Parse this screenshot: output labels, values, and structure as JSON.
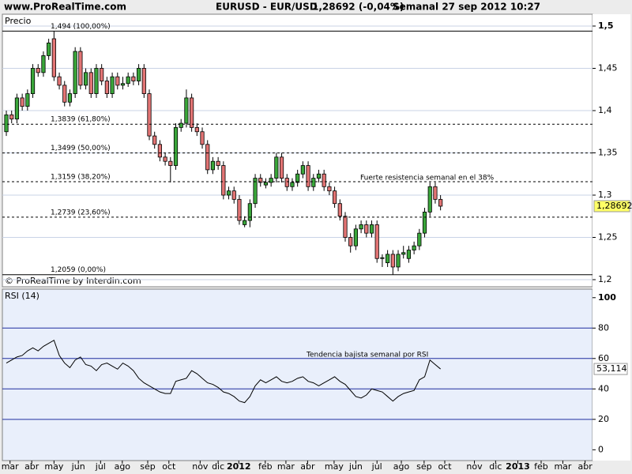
{
  "header": {
    "site": "www.ProRealTime.com",
    "symbol": "EURUSD - EUR/USD",
    "quote": "1,28692 (-0,04%)",
    "period": "Semanal  27 sep 2012 10:27"
  },
  "chart_data": [
    {
      "type": "candlestick",
      "title": "Precio",
      "credit": "© ProRealTime by Interdin.com",
      "up_color": "#3aa63a",
      "down_color": "#e27474",
      "grid": true,
      "open": [
        1.375,
        1.395,
        1.39,
        1.415,
        1.405,
        1.42,
        1.45,
        1.445,
        1.465,
        1.485,
        1.44,
        1.43,
        1.41,
        1.42,
        1.47,
        1.43,
        1.445,
        1.42,
        1.45,
        1.435,
        1.42,
        1.44,
        1.43,
        1.432,
        1.44,
        1.435,
        1.45,
        1.42,
        1.37,
        1.36,
        1.345,
        1.34,
        1.335,
        1.38,
        1.385,
        1.415,
        1.38,
        1.375,
        1.36,
        1.33,
        1.34,
        1.335,
        1.3,
        1.305,
        1.295,
        1.265,
        1.27,
        1.29,
        1.32,
        1.312,
        1.315,
        1.32,
        1.345,
        1.32,
        1.31,
        1.315,
        1.325,
        1.335,
        1.31,
        1.32,
        1.325,
        1.31,
        1.305,
        1.29,
        1.275,
        1.25,
        1.24,
        1.26,
        1.265,
        1.255,
        1.265,
        1.225,
        1.22,
        1.23,
        1.215,
        1.23,
        1.225,
        1.235,
        1.24,
        1.255,
        1.28,
        1.31,
        1.295
      ],
      "high": [
        1.4,
        1.4,
        1.42,
        1.42,
        1.425,
        1.455,
        1.455,
        1.47,
        1.485,
        1.494,
        1.445,
        1.435,
        1.425,
        1.475,
        1.475,
        1.45,
        1.45,
        1.455,
        1.455,
        1.44,
        1.445,
        1.445,
        1.44,
        1.445,
        1.445,
        1.455,
        1.455,
        1.425,
        1.375,
        1.365,
        1.35,
        1.345,
        1.385,
        1.39,
        1.425,
        1.42,
        1.385,
        1.38,
        1.365,
        1.345,
        1.345,
        1.34,
        1.31,
        1.31,
        1.3,
        1.275,
        1.295,
        1.325,
        1.325,
        1.32,
        1.325,
        1.35,
        1.35,
        1.325,
        1.32,
        1.33,
        1.34,
        1.34,
        1.325,
        1.33,
        1.33,
        1.315,
        1.31,
        1.295,
        1.28,
        1.255,
        1.265,
        1.27,
        1.27,
        1.27,
        1.27,
        1.23,
        1.235,
        1.235,
        1.235,
        1.24,
        1.24,
        1.245,
        1.26,
        1.285,
        1.315,
        1.315,
        1.3
      ],
      "low": [
        1.37,
        1.385,
        1.385,
        1.4,
        1.4,
        1.415,
        1.44,
        1.44,
        1.46,
        1.435,
        1.425,
        1.405,
        1.405,
        1.415,
        1.425,
        1.425,
        1.415,
        1.415,
        1.43,
        1.415,
        1.415,
        1.425,
        1.425,
        1.428,
        1.43,
        1.43,
        1.415,
        1.365,
        1.355,
        1.34,
        1.335,
        1.315,
        1.33,
        1.375,
        1.38,
        1.375,
        1.37,
        1.355,
        1.325,
        1.325,
        1.33,
        1.295,
        1.295,
        1.29,
        1.265,
        1.262,
        1.262,
        1.285,
        1.31,
        1.308,
        1.31,
        1.315,
        1.315,
        1.305,
        1.305,
        1.31,
        1.32,
        1.305,
        1.305,
        1.315,
        1.305,
        1.3,
        1.285,
        1.27,
        1.245,
        1.232,
        1.235,
        1.255,
        1.25,
        1.25,
        1.22,
        1.215,
        1.215,
        1.2059,
        1.21,
        1.225,
        1.22,
        1.23,
        1.235,
        1.25,
        1.275,
        1.29,
        1.282
      ],
      "close": [
        1.395,
        1.39,
        1.415,
        1.405,
        1.42,
        1.45,
        1.445,
        1.465,
        1.48,
        1.44,
        1.43,
        1.41,
        1.42,
        1.47,
        1.43,
        1.445,
        1.42,
        1.45,
        1.435,
        1.42,
        1.44,
        1.43,
        1.432,
        1.44,
        1.435,
        1.45,
        1.42,
        1.37,
        1.36,
        1.345,
        1.34,
        1.335,
        1.38,
        1.385,
        1.415,
        1.38,
        1.375,
        1.36,
        1.33,
        1.34,
        1.335,
        1.3,
        1.305,
        1.295,
        1.27,
        1.27,
        1.29,
        1.32,
        1.315,
        1.315,
        1.32,
        1.345,
        1.32,
        1.31,
        1.315,
        1.325,
        1.335,
        1.31,
        1.32,
        1.325,
        1.31,
        1.305,
        1.29,
        1.275,
        1.25,
        1.24,
        1.26,
        1.265,
        1.255,
        1.265,
        1.225,
        1.226,
        1.23,
        1.215,
        1.23,
        1.232,
        1.235,
        1.24,
        1.255,
        1.28,
        1.31,
        1.295,
        1.28692
      ],
      "last_label": "1,28692",
      "xlim": [
        -0.75,
        110.7
      ],
      "ylim": [
        1.1916,
        1.514
      ],
      "yticks": [
        {
          "value": 1.5,
          "label": "1,5"
        },
        {
          "value": 1.45,
          "label": "1,45"
        },
        {
          "value": 1.4,
          "label": "1,4"
        },
        {
          "value": 1.35,
          "label": "1,35"
        },
        {
          "value": 1.3,
          "label": "1,3"
        },
        {
          "value": 1.25,
          "label": "1,25"
        },
        {
          "value": 1.2,
          "label": "1,2"
        }
      ],
      "levels": [
        {
          "value": 1.494,
          "label": "1,494 (100,00%)",
          "style": "solid"
        },
        {
          "value": 1.3839,
          "label": "1,3839 (61,80%)",
          "style": "dashed"
        },
        {
          "value": 1.3499,
          "label": "1,3499 (50,00%)",
          "style": "dashed"
        },
        {
          "value": 1.3159,
          "label": "1,3159 (38,20%)",
          "style": "dashed"
        },
        {
          "value": 1.2739,
          "label": "1,2739 (23,60%)",
          "style": "dashed"
        },
        {
          "value": 1.2059,
          "label": "1,2059 (0,00%)",
          "style": "solid"
        }
      ],
      "annotation": "Fuerte resistencia semanal en el 38%"
    },
    {
      "type": "line",
      "title": "RSI (14)",
      "color": "#000000",
      "grid_color": "#1f2f9f",
      "values": [
        57,
        59,
        61,
        62,
        65,
        67,
        65,
        68,
        70,
        72,
        62,
        57,
        54,
        59,
        61,
        56,
        55,
        52,
        56,
        57,
        55,
        53,
        57,
        55,
        52,
        47,
        44,
        42,
        40,
        38,
        37,
        37,
        45,
        46,
        47,
        52,
        50,
        47,
        44,
        43,
        41,
        38,
        37,
        35,
        32,
        31,
        35,
        42,
        46,
        44,
        46,
        48,
        45,
        44,
        45,
        47,
        48,
        45,
        44,
        42,
        44,
        46,
        48,
        45,
        43,
        39,
        35,
        34,
        36,
        40,
        39,
        38,
        35,
        32,
        35,
        37,
        38,
        39,
        46,
        48,
        59,
        56,
        53.114
      ],
      "last_label": "53,114",
      "xlim": [
        -0.75,
        110.7
      ],
      "ylim": [
        -7.1,
        105.6
      ],
      "yticks": [
        100,
        80,
        60,
        40,
        20,
        0
      ],
      "xticks": [
        {
          "value": 0.7,
          "label": "mar"
        },
        {
          "value": 4.8,
          "label": "abr"
        },
        {
          "value": 9.0,
          "label": "may"
        },
        {
          "value": 13.6,
          "label": "jun"
        },
        {
          "value": 17.8,
          "label": "jul"
        },
        {
          "value": 21.9,
          "label": "ago"
        },
        {
          "value": 26.7,
          "label": "sep"
        },
        {
          "value": 30.7,
          "label": "oct"
        },
        {
          "value": 36.6,
          "label": "nov"
        },
        {
          "value": 40.0,
          "label": "dic"
        },
        {
          "value": 43.9,
          "label": "2012"
        },
        {
          "value": 48.9,
          "label": "feb"
        },
        {
          "value": 52.8,
          "label": "mar"
        },
        {
          "value": 56.9,
          "label": "abr"
        },
        {
          "value": 61.9,
          "label": "may"
        },
        {
          "value": 66.0,
          "label": "jun"
        },
        {
          "value": 70.0,
          "label": "jul"
        },
        {
          "value": 74.6,
          "label": "ago"
        },
        {
          "value": 78.9,
          "label": "sep"
        },
        {
          "value": 82.8,
          "label": "oct"
        },
        {
          "value": 88.4,
          "label": "nov"
        },
        {
          "value": 92.4,
          "label": "dic"
        },
        {
          "value": 96.6,
          "label": "2013"
        },
        {
          "value": 101.0,
          "label": "feb"
        },
        {
          "value": 105.1,
          "label": "mar"
        },
        {
          "value": 109.3,
          "label": "abr"
        }
      ],
      "annotation": "Tendencia bajista semanal por RSI"
    }
  ]
}
